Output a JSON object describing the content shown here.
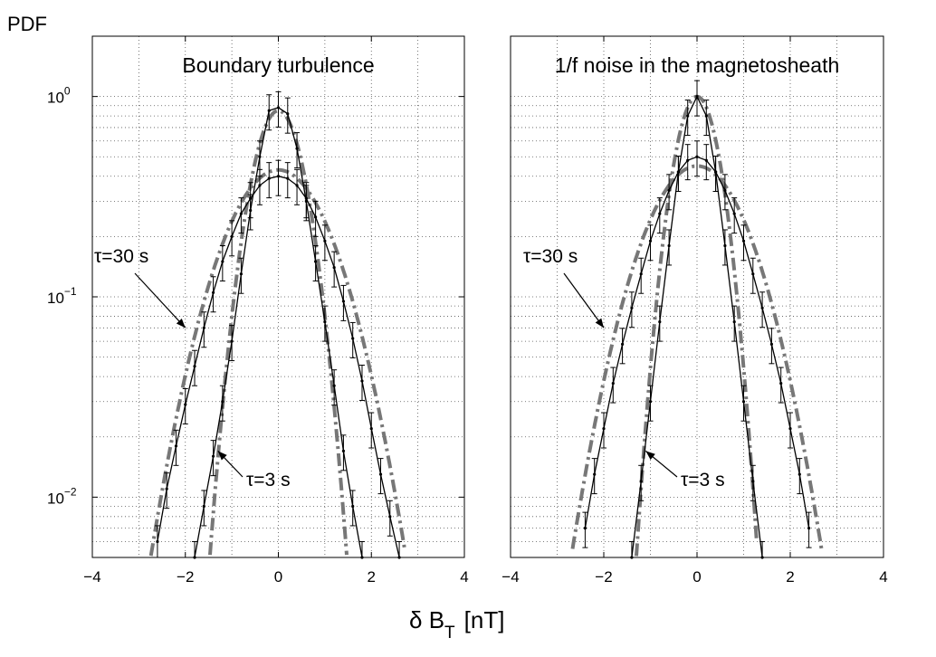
{
  "figure": {
    "ylabel": "PDF",
    "xlabel_main": "δ B",
    "xlabel_sub": "T",
    "xlabel_unit": "[nT]"
  },
  "colors": {
    "gaussian": "#777777",
    "data": "#000000",
    "grid": "#555555"
  },
  "chart_data": [
    {
      "type": "line",
      "title": "Boundary turbulence",
      "xlim": [
        -4,
        4
      ],
      "ylim": [
        0.005,
        2
      ],
      "yscale": "log",
      "grid": true,
      "xticks": [
        -4,
        -2,
        0,
        2,
        4
      ],
      "xtick_labels": [
        "−4",
        "−2",
        "0",
        "2",
        "4"
      ],
      "yticks": [
        0.01,
        0.1,
        1
      ],
      "ytick_labels": [
        {
          "base": "10",
          "exp": "−2"
        },
        {
          "base": "10",
          "exp": "−1"
        },
        {
          "base": "10",
          "exp": "0"
        }
      ],
      "annotations": [
        {
          "text": "τ=30 s",
          "target": [
            -2.0,
            0.07
          ]
        },
        {
          "text": "τ=3 s",
          "target": [
            -1.3,
            0.017
          ]
        }
      ],
      "series": [
        {
          "role": "data",
          "tau": 3,
          "x": [
            -1.8,
            -1.6,
            -1.4,
            -1.2,
            -1.0,
            -0.8,
            -0.6,
            -0.4,
            -0.2,
            0.0,
            0.2,
            0.4,
            0.6,
            0.8,
            1.0,
            1.2,
            1.4,
            1.6,
            1.8
          ],
          "y": [
            0.005,
            0.009,
            0.016,
            0.03,
            0.06,
            0.13,
            0.27,
            0.5,
            0.85,
            0.88,
            0.82,
            0.55,
            0.3,
            0.15,
            0.075,
            0.036,
            0.017,
            0.009,
            0.005
          ]
        },
        {
          "role": "data",
          "tau": 30,
          "x": [
            -2.6,
            -2.4,
            -2.2,
            -2.0,
            -1.8,
            -1.6,
            -1.4,
            -1.2,
            -1.0,
            -0.8,
            -0.6,
            -0.4,
            -0.2,
            0.0,
            0.2,
            0.4,
            0.6,
            0.8,
            1.0,
            1.2,
            1.4,
            1.6,
            1.8,
            2.0,
            2.2,
            2.4,
            2.6
          ],
          "y": [
            0.006,
            0.011,
            0.018,
            0.029,
            0.045,
            0.07,
            0.105,
            0.15,
            0.2,
            0.26,
            0.31,
            0.36,
            0.39,
            0.4,
            0.39,
            0.36,
            0.31,
            0.25,
            0.19,
            0.14,
            0.095,
            0.062,
            0.038,
            0.022,
            0.013,
            0.008,
            0.005
          ]
        },
        {
          "role": "gaussian",
          "tau": 3,
          "sigma": 0.46,
          "amp": 0.85,
          "xrange": [
            -1.5,
            1.5
          ]
        },
        {
          "role": "gaussian",
          "tau": 30,
          "sigma": 0.92,
          "amp": 0.43,
          "xrange": [
            -2.8,
            2.8
          ]
        }
      ]
    },
    {
      "type": "line",
      "title": "1/f noise in the magnetosheath",
      "xlim": [
        -4,
        4
      ],
      "ylim": [
        0.005,
        2
      ],
      "yscale": "log",
      "grid": true,
      "xticks": [
        -4,
        -2,
        0,
        2,
        4
      ],
      "xtick_labels": [
        "−4",
        "−2",
        "0",
        "2",
        "4"
      ],
      "annotations": [
        {
          "text": "τ=30 s",
          "target": [
            -2.0,
            0.07
          ]
        },
        {
          "text": "τ=3 s",
          "target": [
            -1.1,
            0.017
          ]
        }
      ],
      "series": [
        {
          "role": "data",
          "tau": 3,
          "x": [
            -1.4,
            -1.2,
            -1.0,
            -0.8,
            -0.6,
            -0.4,
            -0.2,
            0.0,
            0.2,
            0.4,
            0.6,
            0.8,
            1.0,
            1.2,
            1.4
          ],
          "y": [
            0.005,
            0.012,
            0.03,
            0.075,
            0.18,
            0.42,
            0.8,
            1.0,
            0.8,
            0.42,
            0.18,
            0.075,
            0.03,
            0.012,
            0.005
          ]
        },
        {
          "role": "data",
          "tau": 30,
          "x": [
            -2.4,
            -2.2,
            -2.0,
            -1.8,
            -1.6,
            -1.4,
            -1.2,
            -1.0,
            -0.8,
            -0.6,
            -0.4,
            -0.2,
            0.0,
            0.2,
            0.4,
            0.6,
            0.8,
            1.0,
            1.2,
            1.4,
            1.6,
            1.8,
            2.0,
            2.2,
            2.4
          ],
          "y": [
            0.007,
            0.013,
            0.022,
            0.037,
            0.058,
            0.088,
            0.13,
            0.19,
            0.26,
            0.34,
            0.42,
            0.48,
            0.5,
            0.48,
            0.42,
            0.34,
            0.26,
            0.19,
            0.13,
            0.088,
            0.058,
            0.037,
            0.022,
            0.013,
            0.007
          ]
        },
        {
          "role": "gaussian",
          "tau": 3,
          "sigma": 0.4,
          "amp": 1.0,
          "xrange": [
            -1.3,
            1.3
          ]
        },
        {
          "role": "gaussian",
          "tau": 30,
          "sigma": 0.9,
          "amp": 0.45,
          "xrange": [
            -2.7,
            2.7
          ]
        }
      ]
    }
  ]
}
